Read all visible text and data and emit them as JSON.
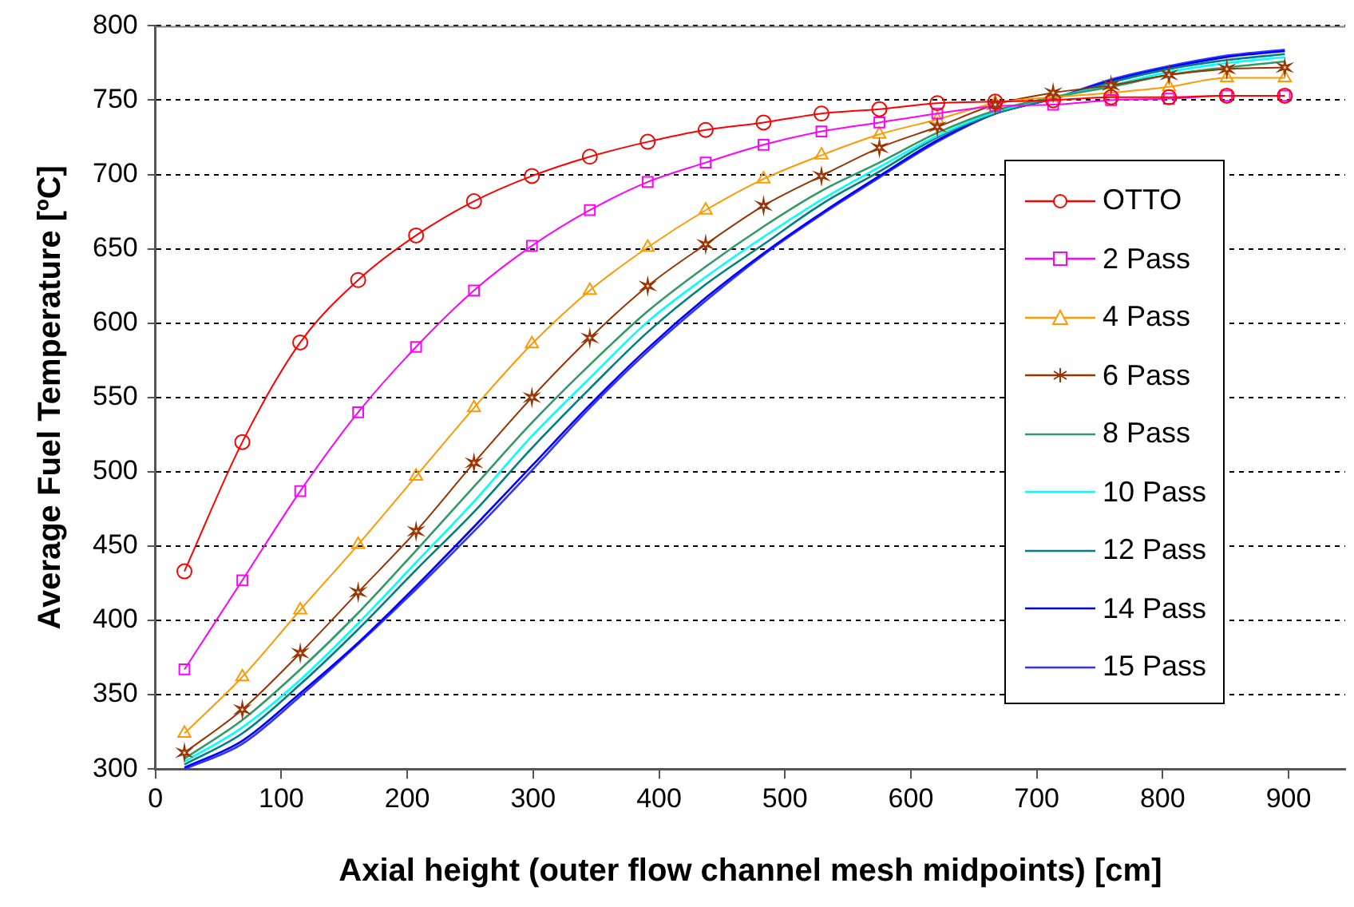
{
  "chart_data": {
    "type": "line",
    "xlabel": "Axial height (outer flow channel mesh midpoints) [cm]",
    "ylabel": "Average Fuel Temperature [ºC]",
    "x": [
      23,
      69,
      115,
      161,
      207,
      253,
      299,
      345,
      391,
      437,
      483,
      529,
      575,
      621,
      667,
      713,
      759,
      805,
      851,
      897
    ],
    "xlim": [
      0,
      945
    ],
    "xticks": [
      0,
      100,
      200,
      300,
      400,
      500,
      600,
      700,
      800,
      900
    ],
    "ylim": [
      300,
      800
    ],
    "yticks": [
      300,
      350,
      400,
      450,
      500,
      550,
      600,
      650,
      700,
      750,
      800
    ],
    "grid": "y",
    "legend": "right",
    "line_style": "solid",
    "series": [
      {
        "name": "OTTO",
        "color": "#ff0000",
        "marker": "circle",
        "values": [
          433,
          520,
          587,
          629,
          659,
          682,
          699,
          712,
          722,
          730,
          735,
          741,
          744,
          748,
          749,
          750,
          752,
          752,
          753,
          753
        ]
      },
      {
        "name": "2 Pass",
        "color": "#ff00ff",
        "marker": "square",
        "values": [
          367,
          427,
          487,
          540,
          584,
          622,
          652,
          676,
          695,
          708,
          720,
          729,
          735,
          741,
          746,
          747,
          750,
          751,
          753,
          753
        ]
      },
      {
        "name": "4 Pass",
        "color": "#ff9900",
        "marker": "triangle",
        "values": [
          324,
          362,
          407,
          451,
          497,
          543,
          586,
          622,
          651,
          676,
          697,
          713,
          727,
          737,
          748,
          752,
          755,
          759,
          765,
          765
        ]
      },
      {
        "name": "6 Pass",
        "color": "#993300",
        "marker": "cross",
        "values": [
          311,
          340,
          378,
          419,
          460,
          506,
          550,
          590,
          625,
          653,
          679,
          699,
          718,
          732,
          747,
          755,
          760,
          767,
          771,
          772
        ]
      },
      {
        "name": "8 Pass",
        "color": "#339966",
        "marker": "none",
        "values": [
          307,
          333,
          367,
          405,
          447,
          490,
          533,
          572,
          608,
          638,
          665,
          689,
          708,
          728,
          743,
          752,
          759,
          767,
          772,
          776
        ]
      },
      {
        "name": "10 Pass",
        "color": "#00ffff",
        "marker": "none",
        "values": [
          305,
          328,
          360,
          398,
          439,
          480,
          524,
          563,
          601,
          631,
          658,
          683,
          705,
          726,
          742,
          752,
          760,
          769,
          775,
          779
        ]
      },
      {
        "name": "12 Pass",
        "color": "#008080",
        "marker": "none",
        "values": [
          303,
          324,
          357,
          394,
          434,
          473,
          516,
          556,
          594,
          626,
          653,
          680,
          702,
          725,
          741,
          751,
          762,
          771,
          777,
          781
        ]
      },
      {
        "name": "14 Pass",
        "color": "#0000ff",
        "marker": "none",
        "values": [
          301,
          319,
          351,
          385,
          423,
          463,
          504,
          545,
          583,
          617,
          647,
          674,
          699,
          723,
          741,
          751,
          763,
          772,
          779,
          783
        ]
      },
      {
        "name": "15 Pass",
        "color": "#3333ff",
        "marker": "none",
        "values": [
          300,
          317,
          349,
          384,
          421,
          460,
          501,
          543,
          581,
          615,
          646,
          673,
          698,
          722,
          741,
          751,
          764,
          773,
          780,
          784
        ]
      }
    ]
  }
}
